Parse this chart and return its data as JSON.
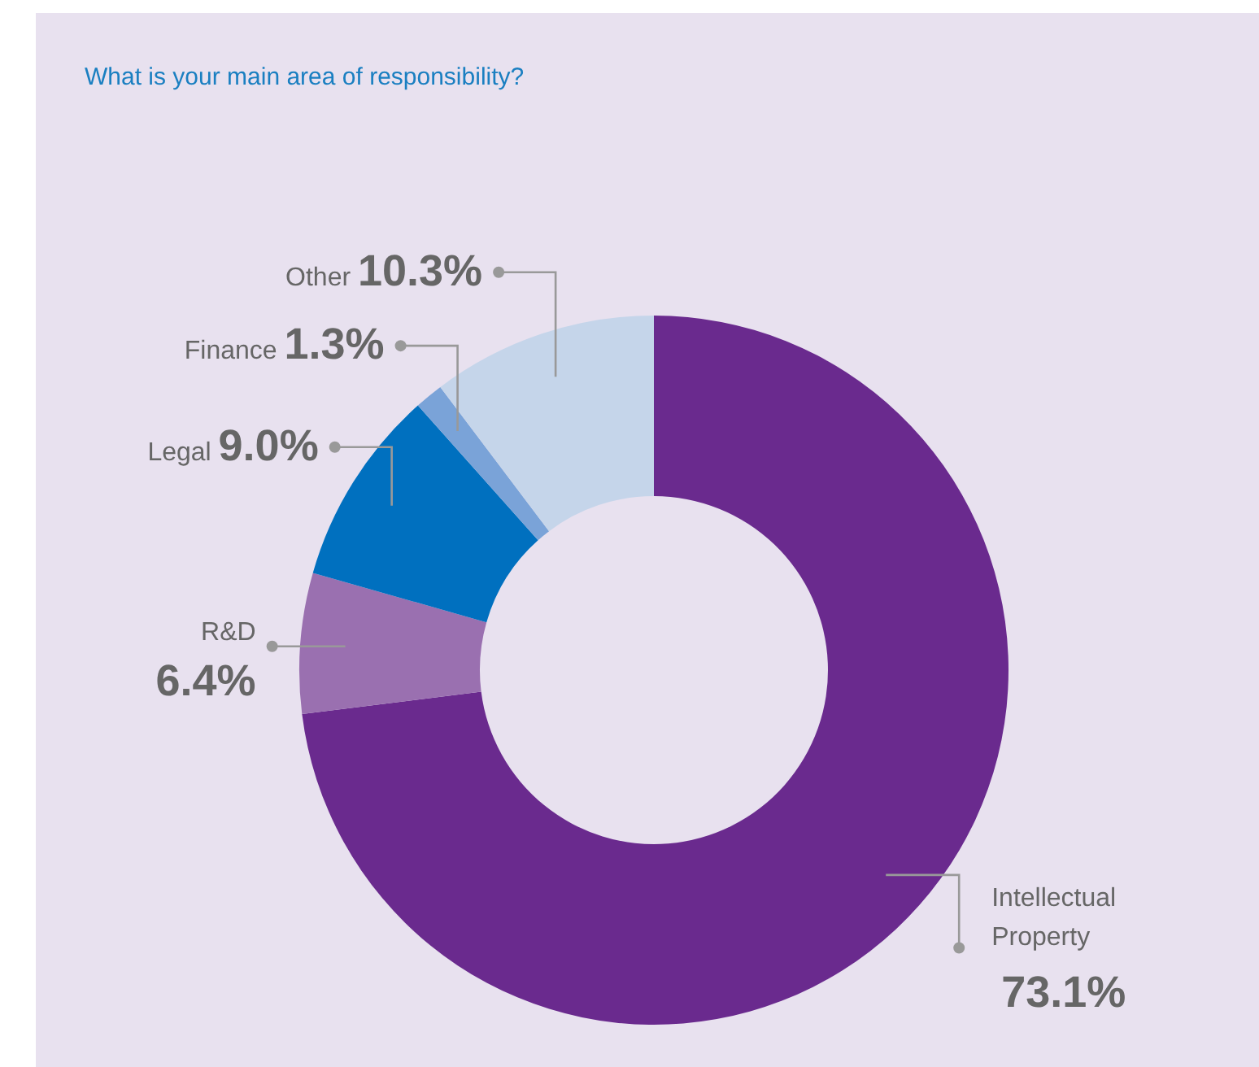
{
  "chart_data": {
    "type": "donut",
    "title": "What is your main area of responsibility?",
    "categories": [
      "Intellectual Property",
      "R&D",
      "Legal",
      "Finance",
      "Other"
    ],
    "values": [
      73.1,
      6.4,
      9.0,
      1.3,
      10.3
    ],
    "value_labels": [
      "73.1%",
      "6.4%",
      "9.0%",
      "1.3%",
      "10.3%"
    ],
    "colors": [
      "#6a2a8e",
      "#9a70b0",
      "#0070bf",
      "#7aa3d8",
      "#c5d5ea"
    ],
    "legend": false
  }
}
